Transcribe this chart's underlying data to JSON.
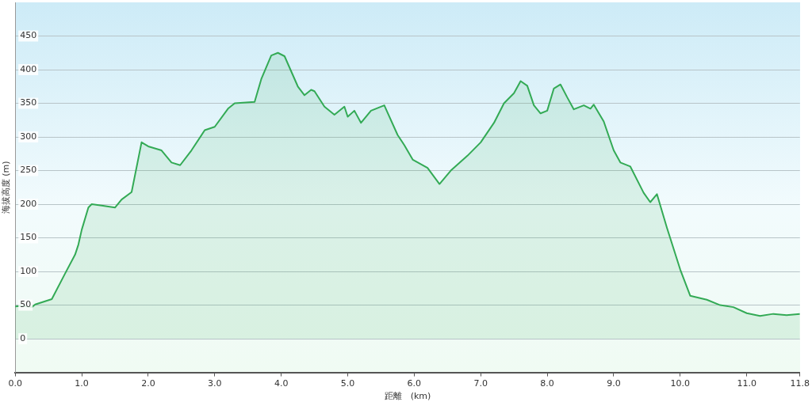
{
  "chart_data": {
    "type": "area",
    "xlabel": "距離　(km)",
    "ylabel": "海拔高度 (m)",
    "x": [
      0,
      0.1,
      0.25,
      0.3,
      0.55,
      0.75,
      0.9,
      0.95,
      1.0,
      1.1,
      1.15,
      1.3,
      1.5,
      1.6,
      1.75,
      1.9,
      2.0,
      2.2,
      2.35,
      2.48,
      2.65,
      2.85,
      3.0,
      3.2,
      3.3,
      3.6,
      3.7,
      3.85,
      3.95,
      4.05,
      4.25,
      4.35,
      4.45,
      4.5,
      4.65,
      4.8,
      4.95,
      5.0,
      5.1,
      5.2,
      5.35,
      5.55,
      5.75,
      5.85,
      5.98,
      6.2,
      6.38,
      6.55,
      6.8,
      7.0,
      7.2,
      7.35,
      7.5,
      7.6,
      7.7,
      7.8,
      7.9,
      8.0,
      8.1,
      8.2,
      8.3,
      8.4,
      8.55,
      8.65,
      8.7,
      8.85,
      9.0,
      9.1,
      9.25,
      9.45,
      9.55,
      9.65,
      9.8,
      10.0,
      10.15,
      10.4,
      10.6,
      10.8,
      11.0,
      11.2,
      11.4,
      11.6,
      11.8
    ],
    "series": [
      {
        "color": "#33aa55",
        "values": [
          48,
          49,
          47,
          51,
          59,
          97,
          125,
          140,
          162,
          195,
          200,
          198,
          195,
          207,
          218,
          292,
          286,
          280,
          262,
          258,
          280,
          310,
          315,
          342,
          350,
          352,
          386,
          421,
          425,
          420,
          375,
          362,
          370,
          368,
          345,
          333,
          345,
          330,
          339,
          321,
          339,
          347,
          303,
          288,
          266,
          254,
          230,
          250,
          272,
          292,
          321,
          350,
          365,
          383,
          376,
          347,
          335,
          339,
          372,
          378,
          359,
          341,
          347,
          342,
          348,
          323,
          280,
          262,
          256,
          217,
          203,
          215,
          165,
          103,
          64,
          58,
          50,
          47,
          38,
          34,
          37,
          35,
          37
        ]
      }
    ],
    "xlim": [
      0,
      11.8
    ],
    "xticks": [
      {
        "value": 0,
        "label": "0.0"
      },
      {
        "value": 1,
        "label": "1.0"
      },
      {
        "value": 2,
        "label": "2.0"
      },
      {
        "value": 3,
        "label": "3.0"
      },
      {
        "value": 4,
        "label": "4.0"
      },
      {
        "value": 5,
        "label": "5.0"
      },
      {
        "value": 6,
        "label": "6.0"
      },
      {
        "value": 7,
        "label": "7.0"
      },
      {
        "value": 8,
        "label": "8.0"
      },
      {
        "value": 9,
        "label": "9.0"
      },
      {
        "value": 10,
        "label": "10.0"
      },
      {
        "value": 11,
        "label": "11.0"
      },
      {
        "value": 11.8,
        "label": "11.8"
      }
    ],
    "ylim": [
      -50,
      500
    ],
    "yticks": [
      0,
      50,
      100,
      150,
      200,
      250,
      300,
      350,
      400,
      450
    ],
    "grid": "y",
    "legend": false,
    "marker": "none",
    "line_style": "solid"
  }
}
